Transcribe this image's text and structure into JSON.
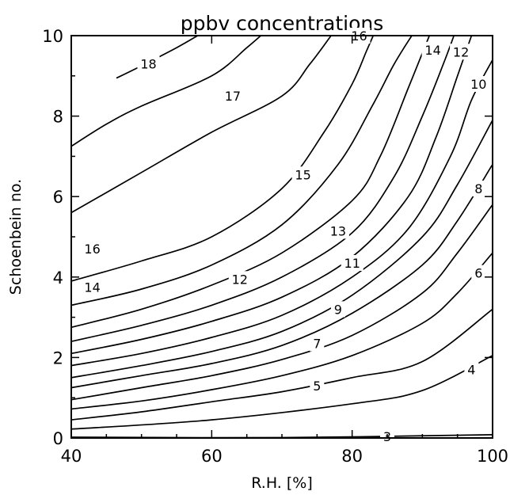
{
  "chart_data": {
    "type": "contour",
    "title": "ppbv concentrations",
    "xlabel": "R.H. [%]",
    "ylabel": "Schoenbein no.",
    "xlim": [
      40,
      100
    ],
    "ylim": [
      0,
      10
    ],
    "xticks": [
      40,
      60,
      80,
      100
    ],
    "yticks": [
      0,
      2,
      4,
      6,
      8,
      10
    ],
    "grid": false,
    "legend": "none",
    "contours": [
      {
        "level": 3,
        "label": "3",
        "points": [
          [
            40,
            0.02
          ],
          [
            70,
            0.01
          ],
          [
            100,
            0.08
          ]
        ],
        "label_at": [
          85,
          0.04
        ]
      },
      {
        "level": 4,
        "label": "4",
        "points": [
          [
            40,
            0.22
          ],
          [
            60,
            0.45
          ],
          [
            80,
            0.85
          ],
          [
            90,
            1.18
          ],
          [
            100,
            2.05
          ]
        ],
        "label_at": [
          97,
          1.7
        ]
      },
      {
        "level": 5,
        "label": "5",
        "points": [
          [
            40,
            0.45
          ],
          [
            50,
            0.65
          ],
          [
            60,
            0.9
          ],
          [
            70,
            1.15
          ],
          [
            80,
            1.5
          ],
          [
            90,
            1.9
          ],
          [
            100,
            3.2
          ]
        ],
        "label_at": [
          75,
          1.3
        ]
      },
      {
        "level": 6,
        "label": "6",
        "points": [
          [
            40,
            0.72
          ],
          [
            50,
            0.92
          ],
          [
            60,
            1.2
          ],
          [
            70,
            1.55
          ],
          [
            80,
            2.05
          ],
          [
            90,
            2.85
          ],
          [
            95,
            3.6
          ],
          [
            100,
            4.6
          ]
        ],
        "label_at": [
          98,
          4.1
        ]
      },
      {
        "level": 7,
        "label": "7",
        "points": [
          [
            40,
            0.95
          ],
          [
            50,
            1.25
          ],
          [
            60,
            1.55
          ],
          [
            70,
            1.95
          ],
          [
            80,
            2.55
          ],
          [
            90,
            3.6
          ],
          [
            95,
            4.6
          ],
          [
            100,
            5.8
          ]
        ],
        "label_at": [
          75,
          2.35
        ]
      },
      {
        "level": 8,
        "label": "8",
        "points": [
          [
            40,
            1.25
          ],
          [
            50,
            1.55
          ],
          [
            60,
            1.85
          ],
          [
            70,
            2.3
          ],
          [
            80,
            3.1
          ],
          [
            90,
            4.3
          ],
          [
            95,
            5.4
          ],
          [
            100,
            6.8
          ]
        ],
        "label_at": [
          98,
          6.2
        ]
      },
      {
        "level": 9,
        "label": "9",
        "points": [
          [
            40,
            1.5
          ],
          [
            50,
            1.8
          ],
          [
            60,
            2.15
          ],
          [
            70,
            2.65
          ],
          [
            80,
            3.55
          ],
          [
            90,
            5.0
          ],
          [
            95,
            6.3
          ],
          [
            100,
            7.9
          ]
        ],
        "label_at": [
          78,
          3.2
        ]
      },
      {
        "level": 10,
        "label": "10",
        "points": [
          [
            40,
            1.8
          ],
          [
            50,
            2.1
          ],
          [
            60,
            2.5
          ],
          [
            70,
            3.05
          ],
          [
            80,
            4.0
          ],
          [
            88,
            5.2
          ],
          [
            94,
            7.0
          ],
          [
            97,
            8.4
          ],
          [
            100,
            9.4
          ]
        ],
        "label_at": [
          98,
          8.8
        ]
      },
      {
        "level": 11,
        "label": "11",
        "points": [
          [
            40,
            2.1
          ],
          [
            50,
            2.45
          ],
          [
            60,
            2.9
          ],
          [
            70,
            3.5
          ],
          [
            80,
            4.5
          ],
          [
            88,
            6.0
          ],
          [
            92,
            7.5
          ],
          [
            95,
            9.0
          ],
          [
            97,
            10.0
          ]
        ],
        "label_at": [
          80,
          4.35
        ]
      },
      {
        "level": 12,
        "label": "12",
        "points": [
          [
            40,
            2.4
          ],
          [
            50,
            2.8
          ],
          [
            60,
            3.3
          ],
          [
            70,
            4.0
          ],
          [
            80,
            5.1
          ],
          [
            86,
            6.5
          ],
          [
            90,
            8.0
          ],
          [
            93,
            9.3
          ],
          [
            94.5,
            10.0
          ]
        ],
        "label_at": [
          64,
          3.95
        ]
      },
      {
        "level": 13,
        "label": "13",
        "points": [
          [
            40,
            2.75
          ],
          [
            50,
            3.2
          ],
          [
            60,
            3.8
          ],
          [
            70,
            4.6
          ],
          [
            80,
            5.9
          ],
          [
            84,
            7.0
          ],
          [
            88,
            8.7
          ],
          [
            91,
            10.0
          ]
        ],
        "label_at": [
          78,
          5.15
        ]
      },
      {
        "level": 14,
        "label": "14",
        "points": [
          [
            40,
            3.3
          ],
          [
            50,
            3.7
          ],
          [
            60,
            4.3
          ],
          [
            70,
            5.3
          ],
          [
            78,
            6.8
          ],
          [
            83,
            8.3
          ],
          [
            86,
            9.3
          ],
          [
            88.5,
            10.0
          ]
        ],
        "label_at": [
          43,
          3.75
        ]
      },
      {
        "level": 15,
        "label": "15",
        "points": [
          [
            40,
            3.9
          ],
          [
            50,
            4.4
          ],
          [
            60,
            5.0
          ],
          [
            70,
            6.2
          ],
          [
            76,
            7.6
          ],
          [
            80,
            8.8
          ],
          [
            82,
            9.6
          ],
          [
            83,
            10.0
          ]
        ],
        "label_at": [
          73,
          6.55
        ]
      },
      {
        "level": 16,
        "label": "16",
        "points": [
          [
            40,
            5.6
          ],
          [
            50,
            6.6
          ],
          [
            60,
            7.6
          ],
          [
            70,
            8.5
          ],
          [
            74,
            9.3
          ],
          [
            77,
            10.0
          ]
        ],
        "label_at": [
          43,
          4.7
        ]
      },
      {
        "level": 17,
        "label": "17",
        "points": [
          [
            40,
            7.25
          ],
          [
            45,
            7.8
          ],
          [
            50,
            8.25
          ],
          [
            60,
            9.0
          ],
          [
            65,
            9.7
          ],
          [
            67,
            10.0
          ]
        ],
        "label_at": [
          63,
          8.5
        ]
      },
      {
        "level": 18,
        "label": "18",
        "points": [
          [
            46.5,
            8.95
          ],
          [
            50,
            9.25
          ],
          [
            55,
            9.7
          ],
          [
            58,
            10.0
          ]
        ],
        "label_at": [
          51,
          9.3
        ]
      }
    ],
    "extra_labels": [
      {
        "text": "16",
        "at": [
          81,
          10.0
        ]
      },
      {
        "text": "14",
        "at": [
          91.5,
          9.65
        ]
      },
      {
        "text": "12",
        "at": [
          95.5,
          9.6
        ]
      }
    ]
  }
}
